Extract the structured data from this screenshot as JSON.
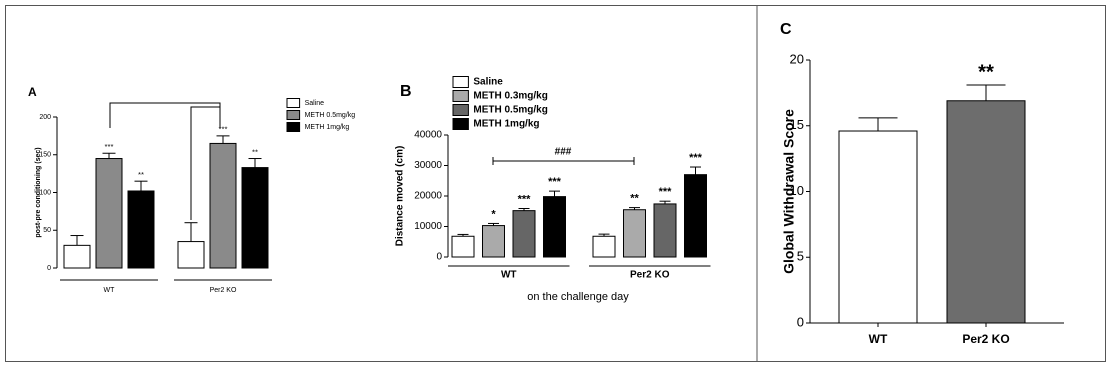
{
  "chart_data": [
    {
      "type": "bar",
      "panel_label": "A",
      "y_label": "post-pre conditioning (sec)",
      "categories": [
        "WT",
        "Per2 KO"
      ],
      "series": [
        {
          "name": "Saline",
          "color": "#ffffff",
          "values": [
            30,
            35
          ],
          "errors": [
            13,
            25
          ],
          "annotations": [
            null,
            null
          ]
        },
        {
          "name": "METH 0.5mg/kg",
          "color": "#8a8a8a",
          "values": [
            145,
            165
          ],
          "errors": [
            7,
            10
          ],
          "annotations": [
            "***",
            "***"
          ]
        },
        {
          "name": "METH 1mg/kg",
          "color": "#000000",
          "values": [
            102,
            133
          ],
          "errors": [
            13,
            12
          ],
          "annotations": [
            "**",
            "**"
          ]
        }
      ],
      "ylim": [
        0,
        200
      ],
      "yticks": [
        0,
        50,
        100,
        150,
        200
      ]
    },
    {
      "type": "bar",
      "panel_label": "B",
      "y_label": "Distance moved (cm)",
      "x_label": "on the challenge day",
      "bracket_label": "###",
      "categories": [
        "WT",
        "Per2 KO"
      ],
      "series": [
        {
          "name": "Saline",
          "color": "#ffffff",
          "values": [
            6800,
            6800
          ],
          "errors": [
            600,
            700
          ],
          "annotations": [
            null,
            null
          ]
        },
        {
          "name": "METH 0.3mg/kg",
          "color": "#aaaaaa",
          "values": [
            10300,
            15500
          ],
          "errors": [
            700,
            700
          ],
          "annotations": [
            "*",
            "**"
          ]
        },
        {
          "name": "METH 0.5mg/kg",
          "color": "#666666",
          "values": [
            15200,
            17400
          ],
          "errors": [
            700,
            900
          ],
          "annotations": [
            "***",
            "***"
          ]
        },
        {
          "name": "METH 1mg/kg",
          "color": "#000000",
          "values": [
            19800,
            27000
          ],
          "errors": [
            1800,
            2500
          ],
          "annotations": [
            "***",
            "***"
          ]
        }
      ],
      "ylim": [
        0,
        40000
      ],
      "yticks": [
        0,
        10000,
        20000,
        30000,
        40000
      ]
    },
    {
      "type": "bar",
      "panel_label": "C",
      "y_label": "Global Withdrawal Score",
      "categories": [
        "WT",
        "Per2 KO"
      ],
      "values": [
        14.6,
        16.9
      ],
      "errors": [
        1.0,
        1.2
      ],
      "colors": [
        "#ffffff",
        "#6d6d6d"
      ],
      "annotations": [
        null,
        "**"
      ],
      "ylim": [
        0,
        20
      ],
      "yticks": [
        0,
        5,
        10,
        15,
        20
      ]
    }
  ]
}
